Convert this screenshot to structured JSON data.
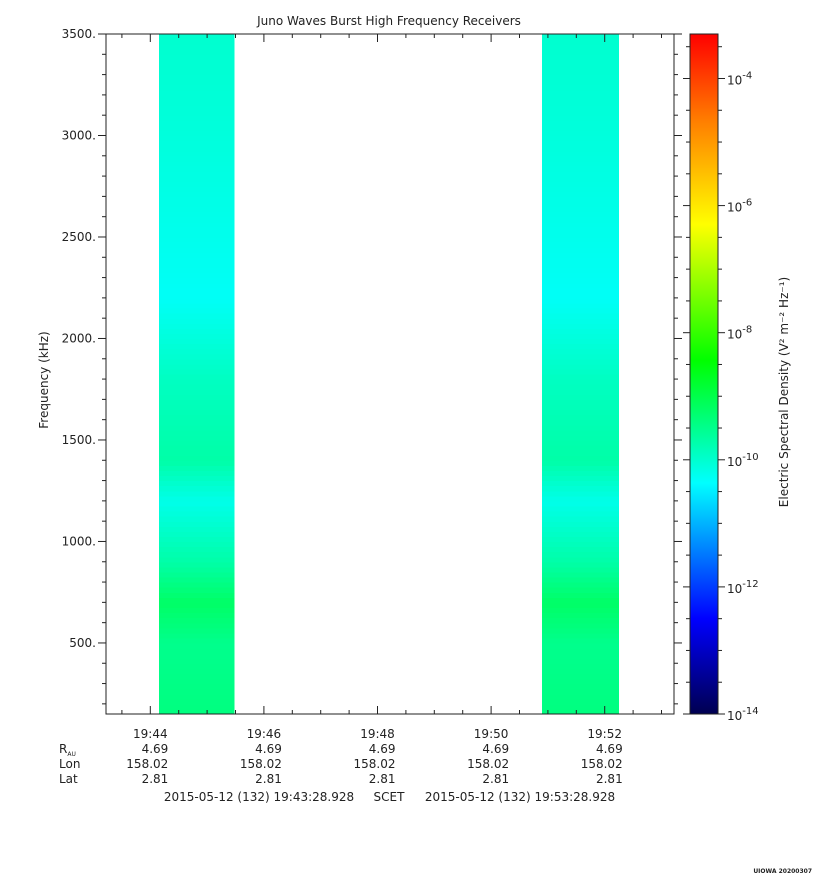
{
  "chart_data": {
    "type": "heatmap",
    "title": "Juno Waves Burst High Frequency Receivers",
    "ylabel": "Frequency (kHz)",
    "ylim": [
      150,
      3500
    ],
    "y_ticks": [
      {
        "value": 500,
        "label": "500."
      },
      {
        "value": 1000,
        "label": "1000."
      },
      {
        "value": 1500,
        "label": "1500."
      },
      {
        "value": 2000,
        "label": "2000."
      },
      {
        "value": 2500,
        "label": "2500."
      },
      {
        "value": 3000,
        "label": "3000."
      },
      {
        "value": 3500,
        "label": "3500."
      }
    ],
    "y_minor_step": 100,
    "x_range_minutes": [
      19.72,
      29.72
    ],
    "x_ticks": [
      {
        "minute": 20.5,
        "label": "19:44"
      },
      {
        "minute": 22.5,
        "label": "19:46"
      },
      {
        "minute": 24.5,
        "label": "19:48"
      },
      {
        "minute": 26.5,
        "label": "19:50"
      },
      {
        "minute": 28.5,
        "label": "19:52"
      }
    ],
    "x_minor_step_minutes": 0.5,
    "data_blocks": [
      {
        "start_minute": 20.65,
        "end_minute": 21.98,
        "level_exponent": -9.7
      },
      {
        "start_minute": 27.4,
        "end_minute": 28.75,
        "level_exponent": -9.7
      }
    ],
    "frequency_profile": [
      {
        "f": 150,
        "level": -9.4
      },
      {
        "f": 500,
        "level": -9.5
      },
      {
        "f": 700,
        "level": -9.2
      },
      {
        "f": 900,
        "level": -9.7
      },
      {
        "f": 1200,
        "level": -10.2
      },
      {
        "f": 1400,
        "level": -9.7
      },
      {
        "f": 1800,
        "level": -9.9
      },
      {
        "f": 2200,
        "level": -10.3
      },
      {
        "f": 3000,
        "level": -10.1
      },
      {
        "f": 3500,
        "level": -10.0
      }
    ],
    "colorbar": {
      "label": "Electric Spectral Density (V² m⁻² Hz⁻¹)",
      "range_exponent": [
        -14,
        -3.3
      ],
      "tick_exponents": [
        -14,
        -12,
        -10,
        -8,
        -6,
        -4
      ],
      "tick_base": "10",
      "tick_labels": [
        "-14",
        "-12",
        "-10",
        "-8",
        "-6",
        "-4"
      ],
      "colors": [
        "#000050",
        "#0000ff",
        "#00ffff",
        "#00ff00",
        "#ffff00",
        "#ff8000",
        "#ff0000"
      ]
    },
    "ephemeris": {
      "row_labels": [
        "R",
        "Lon",
        "Lat"
      ],
      "r_subscript": "AU",
      "rows": [
        [
          "4.69",
          "4.69",
          "4.69",
          "4.69",
          "4.69"
        ],
        [
          "158.02",
          "158.02",
          "158.02",
          "158.02",
          "158.02"
        ],
        [
          "2.81",
          "2.81",
          "2.81",
          "2.81",
          "2.81"
        ]
      ]
    },
    "footer": {
      "start": "2015-05-12 (132) 19:43:28.928",
      "label": "SCET",
      "end": "2015-05-12 (132) 19:53:28.928"
    },
    "stamp": "UIOWA 20200307"
  }
}
